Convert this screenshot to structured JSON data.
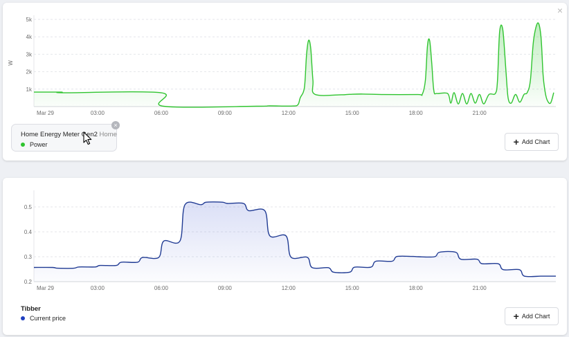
{
  "energy_card": {
    "device_name": "Home Energy Meter Gen2",
    "room_name": "Home",
    "add_chart_label": "Add Chart",
    "close_glyph": "×",
    "remove_glyph": "×",
    "series_color": "#2fc42f",
    "chart_data": {
      "type": "area",
      "title": "",
      "xlabel": "",
      "ylabel": "W",
      "x_ticks": [
        "Mar 29",
        "03:00",
        "06:00",
        "09:00",
        "12:00",
        "15:00",
        "18:00",
        "21:00"
      ],
      "y_ticks": [
        "1k",
        "2k",
        "3k",
        "4k",
        "5k"
      ],
      "ylim": [
        0,
        5000
      ],
      "xlim_hours": [
        0,
        24.6
      ],
      "grid": true,
      "series": [
        {
          "name": "Power",
          "points": [
            [
              0,
              830
            ],
            [
              1.3,
              830
            ],
            [
              1.4,
              790
            ],
            [
              6.0,
              790
            ],
            [
              6.1,
              20
            ],
            [
              10.5,
              20
            ],
            [
              11.1,
              40
            ],
            [
              12.2,
              30
            ],
            [
              12.45,
              120
            ],
            [
              12.55,
              500
            ],
            [
              12.75,
              1100
            ],
            [
              12.85,
              3000
            ],
            [
              12.95,
              3800
            ],
            [
              13.05,
              3300
            ],
            [
              13.15,
              1500
            ],
            [
              13.25,
              700
            ],
            [
              14.5,
              680
            ],
            [
              14.8,
              700
            ],
            [
              15.5,
              720
            ],
            [
              16.5,
              690
            ],
            [
              18.1,
              690
            ],
            [
              18.3,
              700
            ],
            [
              18.45,
              1500
            ],
            [
              18.55,
              3500
            ],
            [
              18.65,
              3800
            ],
            [
              18.75,
              2500
            ],
            [
              18.85,
              900
            ],
            [
              19.0,
              750
            ],
            [
              19.5,
              750
            ],
            [
              19.65,
              200
            ],
            [
              19.8,
              800
            ],
            [
              20.0,
              150
            ],
            [
              20.2,
              750
            ],
            [
              20.4,
              150
            ],
            [
              20.6,
              750
            ],
            [
              20.8,
              200
            ],
            [
              21.0,
              700
            ],
            [
              21.2,
              150
            ],
            [
              21.45,
              700
            ],
            [
              21.75,
              750
            ],
            [
              21.85,
              1500
            ],
            [
              21.95,
              4300
            ],
            [
              22.1,
              4400
            ],
            [
              22.25,
              2000
            ],
            [
              22.35,
              500
            ],
            [
              22.5,
              200
            ],
            [
              22.7,
              700
            ],
            [
              22.9,
              250
            ],
            [
              23.1,
              700
            ],
            [
              23.25,
              800
            ],
            [
              23.4,
              1500
            ],
            [
              23.55,
              3800
            ],
            [
              23.75,
              4800
            ],
            [
              23.9,
              4000
            ],
            [
              24.0,
              1800
            ],
            [
              24.1,
              800
            ],
            [
              24.2,
              350
            ],
            [
              24.35,
              200
            ],
            [
              24.5,
              800
            ]
          ]
        }
      ]
    }
  },
  "price_card": {
    "provider": "Tibber",
    "add_chart_label": "Add Chart",
    "series_color": "#1f3a93",
    "chart_data": {
      "type": "line",
      "title": "",
      "xlabel": "",
      "ylabel": "",
      "x_ticks": [
        "Mar 29",
        "03:00",
        "06:00",
        "09:00",
        "12:00",
        "15:00",
        "18:00",
        "21:00"
      ],
      "y_ticks": [
        "0.2",
        "0.3",
        "0.4",
        "0.5"
      ],
      "ylim": [
        0.2,
        0.55
      ],
      "xlim_hours": [
        0,
        24.6
      ],
      "grid": true,
      "series": [
        {
          "name": "Current price",
          "step_hours": [
            0,
            1,
            2,
            3,
            4,
            5,
            6,
            7,
            8,
            9,
            10,
            11,
            12,
            13,
            14,
            15,
            16,
            17,
            18,
            19,
            20,
            21,
            22,
            23,
            24
          ],
          "values": [
            0.257,
            0.254,
            0.259,
            0.265,
            0.278,
            0.297,
            0.363,
            0.509,
            0.519,
            0.514,
            0.485,
            0.384,
            0.298,
            0.256,
            0.238,
            0.258,
            0.282,
            0.301,
            0.3,
            0.318,
            0.29,
            0.272,
            0.248,
            0.222,
            0.222
          ]
        }
      ]
    }
  }
}
